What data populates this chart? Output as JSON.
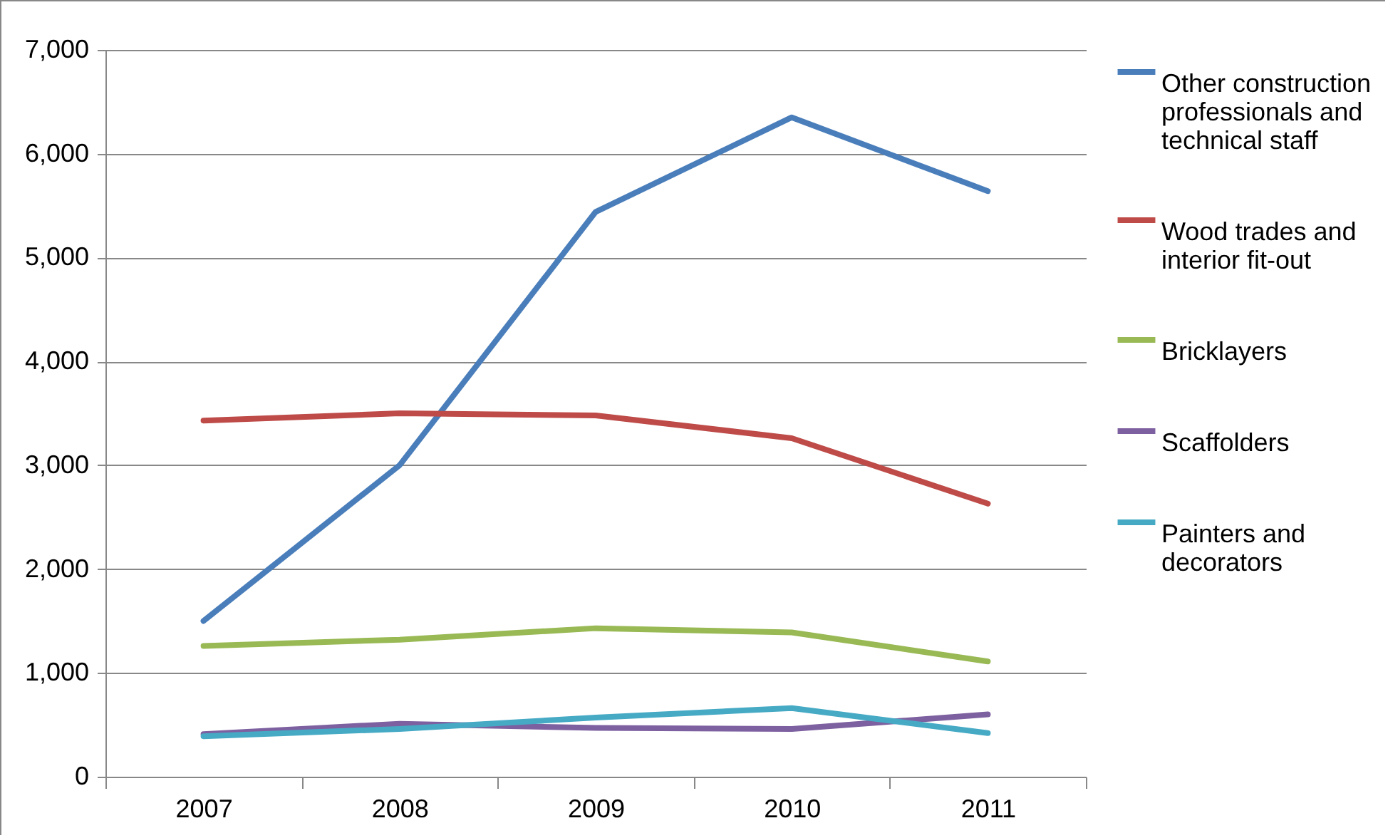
{
  "chart_data": {
    "type": "line",
    "categories": [
      "2007",
      "2008",
      "2009",
      "2010",
      "2011"
    ],
    "series": [
      {
        "name": "Other construction professionals and technical staff",
        "color": "#4a7ebb",
        "values": [
          1500,
          3000,
          5440,
          6350,
          5640
        ]
      },
      {
        "name": "Wood trades and interior fit-out",
        "color": "#be4b48",
        "values": [
          3430,
          3500,
          3480,
          3260,
          2630
        ]
      },
      {
        "name": "Bricklayers",
        "color": "#98b954",
        "values": [
          1260,
          1320,
          1430,
          1390,
          1110
        ]
      },
      {
        "name": "Scaffolders",
        "color": "#7d60a0",
        "values": [
          410,
          510,
          470,
          460,
          600
        ]
      },
      {
        "name": "Painters and decorators",
        "color": "#46aac5",
        "values": [
          390,
          460,
          570,
          660,
          420
        ]
      }
    ],
    "ylim": [
      0,
      7000
    ],
    "yticks": [
      0,
      {
        "value": 1000,
        "label": "1,000"
      },
      {
        "value": 2000,
        "label": "2,000"
      },
      {
        "value": 3000,
        "label": "3,000"
      },
      {
        "value": 4000,
        "label": "4,000"
      },
      {
        "value": 5000,
        "label": "5,000"
      },
      {
        "value": 6000,
        "label": "6,000"
      },
      {
        "value": 7000,
        "label": "7,000"
      }
    ],
    "grid": "y",
    "legend": "right",
    "marker": "none",
    "line_style": "solid"
  }
}
